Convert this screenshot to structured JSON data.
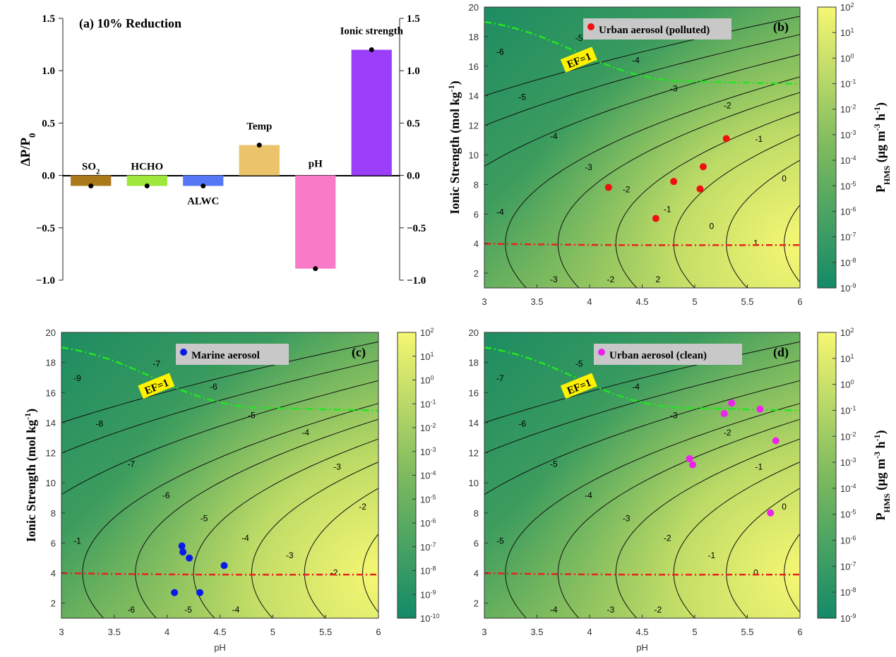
{
  "chart_data": [
    {
      "panel": "a",
      "type": "bar",
      "title": "(a)  10% Reduction",
      "ylabel": "ΔP/P₀",
      "ylim": [
        -1.0,
        1.5
      ],
      "yticks": [
        "1.5",
        "1.0",
        "0.5",
        "0.0",
        "−0.5",
        "−1.0"
      ],
      "ytick_values": [
        1.5,
        1.0,
        0.5,
        0.0,
        -0.5,
        -1.0
      ],
      "categories": [
        "SO2",
        "HCHO",
        "ALWC",
        "Temp",
        "pH",
        "Ionic strength"
      ],
      "values": [
        -0.1,
        -0.1,
        -0.1,
        0.29,
        -0.89,
        1.2
      ],
      "colors": [
        "#A9791A",
        "#9EE83C",
        "#5577F5",
        "#EBC36A",
        "#F97BC8",
        "#9A3EFA"
      ]
    },
    {
      "panel": "b",
      "type": "heatmap",
      "panel_label": "(b)",
      "legend_text": "Urban aerosol (polluted)",
      "legend_color": "#EE1111",
      "ylabel": "Ionic Strength (mol kg-1)",
      "xlim": [
        3,
        6
      ],
      "ylim": [
        1,
        20
      ],
      "xticks": [
        "3",
        "3.5",
        "4",
        "4.5",
        "5",
        "5.5",
        "6"
      ],
      "yticks": [
        "2",
        "4",
        "6",
        "8",
        "10",
        "12",
        "14",
        "16",
        "18",
        "20"
      ],
      "contour_labels": [
        "-6",
        "-5",
        "-4",
        "-3",
        "-2",
        "-1",
        "0",
        "1",
        "-5",
        "-4",
        "-3",
        "-2",
        "-1",
        "0",
        "-4",
        "-3",
        "-2",
        "2"
      ],
      "ef_label": "EF=1",
      "points": [
        [
          4.18,
          7.8
        ],
        [
          4.63,
          5.7
        ],
        [
          4.8,
          8.2
        ],
        [
          5.05,
          7.7
        ],
        [
          5.08,
          9.2
        ],
        [
          5.3,
          11.1
        ]
      ],
      "colorbar": {
        "label": "PHMS (μg m-3 h-1)",
        "ticks": [
          "10",
          "10",
          "10",
          "10",
          "10",
          "10",
          "10",
          "10",
          "10",
          "10",
          "10",
          "10"
        ],
        "exponents": [
          "2",
          "1",
          "0",
          "-1",
          "-2",
          "-3",
          "-4",
          "-5",
          "-6",
          "-7",
          "-8",
          "-9"
        ]
      }
    },
    {
      "panel": "c",
      "type": "heatmap",
      "panel_label": "(c)",
      "legend_text": "Marine aerosol",
      "legend_color": "#0A1AE8",
      "ylabel": "Ionic Strength (mol kg-1)",
      "xlabel": "pH",
      "xlim": [
        3,
        6
      ],
      "ylim": [
        1,
        20
      ],
      "xticks": [
        "3",
        "3.5",
        "4",
        "4.5",
        "5",
        "5.5",
        "6"
      ],
      "yticks": [
        "2",
        "4",
        "6",
        "8",
        "10",
        "12",
        "14",
        "16",
        "18",
        "20"
      ],
      "contour_labels": [
        "-9",
        "-8",
        "-7",
        "-6",
        "-5",
        "-4",
        "-3",
        "-2",
        "-7",
        "-6",
        "-5",
        "-4",
        "-3",
        "-2",
        "-1",
        "-6",
        "-5",
        "-4"
      ],
      "ef_label": "EF=1",
      "points": [
        [
          4.07,
          2.7
        ],
        [
          4.14,
          5.8
        ],
        [
          4.15,
          5.4
        ],
        [
          4.21,
          5.0
        ],
        [
          4.31,
          2.7
        ],
        [
          4.54,
          4.5
        ]
      ],
      "colorbar": {
        "label": "",
        "ticks": [
          "10",
          "10",
          "10",
          "10",
          "10",
          "10",
          "10",
          "10",
          "10",
          "10",
          "10",
          "10",
          "10"
        ],
        "exponents": [
          "2",
          "1",
          "0",
          "-1",
          "-2",
          "-3",
          "-4",
          "-5",
          "-6",
          "-7",
          "-8",
          "-9",
          "-10"
        ]
      }
    },
    {
      "panel": "d",
      "type": "heatmap",
      "panel_label": "(d)",
      "legend_text": "Urban aerosol (clean)",
      "legend_color": "#EE22EE",
      "ylabel": "",
      "xlabel": "pH",
      "xlim": [
        3,
        6
      ],
      "ylim": [
        1,
        20
      ],
      "xticks": [
        "3",
        "3.5",
        "4",
        "4.5",
        "5",
        "5.5",
        "6"
      ],
      "yticks": [
        "2",
        "4",
        "6",
        "8",
        "10",
        "12",
        "14",
        "16",
        "18",
        "20"
      ],
      "contour_labels": [
        "-7",
        "-6",
        "-5",
        "-4",
        "-3",
        "-2",
        "-1",
        "0",
        "-5",
        "-4",
        "-3",
        "-2",
        "-1",
        "0",
        "-5",
        "-4",
        "-3",
        "-2"
      ],
      "ef_label": "EF=1",
      "points": [
        [
          4.95,
          11.6
        ],
        [
          4.98,
          11.2
        ],
        [
          5.28,
          14.6
        ],
        [
          5.35,
          15.3
        ],
        [
          5.62,
          14.9
        ],
        [
          5.77,
          12.8
        ],
        [
          5.72,
          8.0
        ]
      ],
      "colorbar": {
        "label": "PHMS (μg m-3 h-1)",
        "ticks": [
          "10",
          "10",
          "10",
          "10",
          "10",
          "10",
          "10",
          "10",
          "10",
          "10",
          "10",
          "10"
        ],
        "exponents": [
          "2",
          "1",
          "0",
          "-1",
          "-2",
          "-3",
          "-4",
          "-5",
          "-6",
          "-7",
          "-8",
          "-9"
        ]
      }
    }
  ]
}
